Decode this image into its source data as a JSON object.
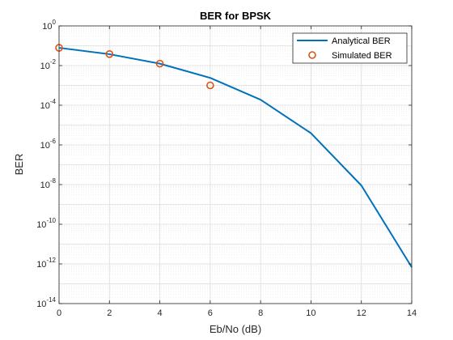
{
  "chart_data": {
    "type": "line",
    "title": "BER for BPSK",
    "xlabel": "Eb/No (dB)",
    "ylabel": "BER",
    "xlim": [
      0,
      14
    ],
    "ylim": [
      1e-14,
      1
    ],
    "yscale": "log",
    "grid": true,
    "minor_grid": true,
    "legend_position": "top-right",
    "x_ticks": [
      0,
      2,
      4,
      6,
      8,
      10,
      12,
      14
    ],
    "x_tick_labels": [
      "0",
      "2",
      "4",
      "6",
      "8",
      "10",
      "12",
      "14"
    ],
    "y_ticks": [
      {
        "base": "10",
        "exp": "0"
      },
      {
        "base": "10",
        "exp": "-2"
      },
      {
        "base": "10",
        "exp": "-4"
      },
      {
        "base": "10",
        "exp": "-6"
      },
      {
        "base": "10",
        "exp": "-8"
      },
      {
        "base": "10",
        "exp": "-10"
      },
      {
        "base": "10",
        "exp": "-12"
      },
      {
        "base": "10",
        "exp": "-14"
      }
    ],
    "series": [
      {
        "name": "Analytical BER",
        "style": "line",
        "color": "#0072BD",
        "x": [
          0,
          2,
          4,
          6,
          8,
          10,
          12,
          14
        ],
        "y": [
          0.0786,
          0.0375,
          0.0125,
          0.0024,
          0.00019,
          3.9e-06,
          9e-09,
          6.8e-13
        ]
      },
      {
        "name": "Simulated BER",
        "style": "marker",
        "color": "#D95319",
        "x": [
          0,
          2,
          4,
          6
        ],
        "y": [
          0.0786,
          0.038,
          0.0125,
          0.001
        ]
      }
    ]
  }
}
